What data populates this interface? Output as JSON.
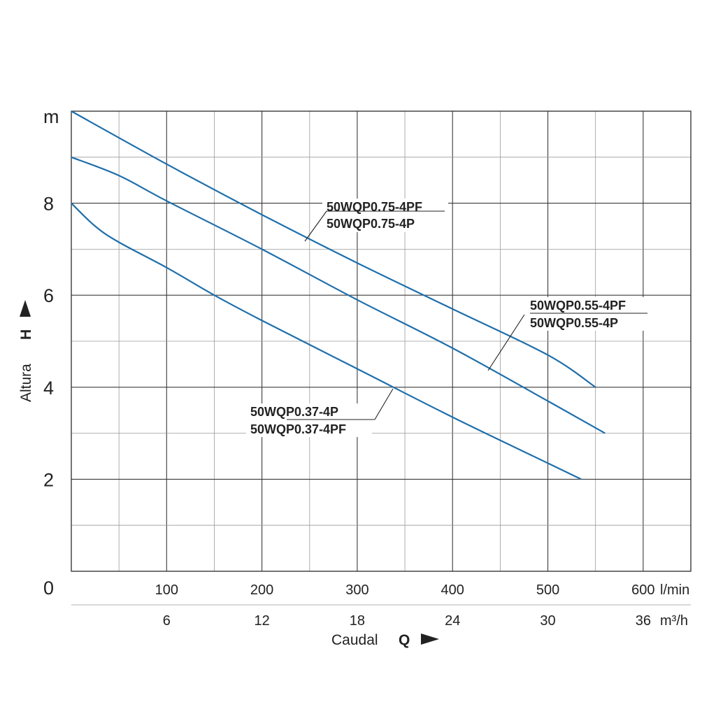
{
  "chart_data": {
    "type": "line",
    "title": "",
    "xlabel": "Caudal",
    "x_symbol": "Q",
    "ylabel": "Altura",
    "y_symbol": "H",
    "y_unit": "m",
    "x_unit": "l/min",
    "x2_unit": "m³/h",
    "xlim": [
      0,
      650
    ],
    "ylim": [
      0,
      10
    ],
    "x_ticks": [
      100,
      200,
      300,
      400,
      500,
      600
    ],
    "x2_ticks": [
      6,
      12,
      18,
      24,
      30,
      36
    ],
    "y_ticks": [
      2,
      4,
      6,
      8
    ],
    "y_zero_label": "0",
    "grid": true,
    "curve_color": "#1f6fab",
    "series": [
      {
        "name": "50WQP0.75-4PF",
        "name2": "50WQP0.75-4P",
        "points": [
          [
            0,
            10.0
          ],
          [
            100,
            8.85
          ],
          [
            200,
            7.75
          ],
          [
            300,
            6.7
          ],
          [
            400,
            5.7
          ],
          [
            500,
            4.7
          ],
          [
            550,
            4.0
          ]
        ]
      },
      {
        "name": "50WQP0.55-4PF",
        "name2": "50WQP0.55-4P",
        "points": [
          [
            0,
            9.0
          ],
          [
            50,
            8.6
          ],
          [
            100,
            8.05
          ],
          [
            200,
            7.0
          ],
          [
            300,
            5.9
          ],
          [
            400,
            4.85
          ],
          [
            500,
            3.7
          ],
          [
            560,
            3.0
          ]
        ]
      },
      {
        "name": "50WQP0.37-4P",
        "name2": "50WQP0.37-4PF",
        "points": [
          [
            0,
            8.0
          ],
          [
            25,
            7.5
          ],
          [
            50,
            7.15
          ],
          [
            100,
            6.6
          ],
          [
            150,
            6.0
          ],
          [
            200,
            5.45
          ],
          [
            300,
            4.4
          ],
          [
            400,
            3.35
          ],
          [
            500,
            2.35
          ],
          [
            535,
            2.0
          ]
        ]
      }
    ]
  }
}
